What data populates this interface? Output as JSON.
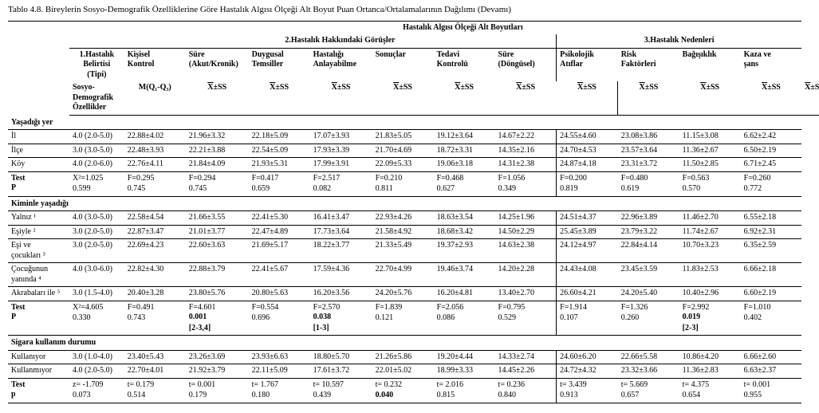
{
  "title": "Tablo 4.8. Bireylerin Sosyo-Demografik Özelliklerine Göre Hastalık Algısı Ölçeği Alt Boyut Puan Ortanca/Ortalamalarının Dağılımı (Devamı)",
  "rowhead": {
    "label": "Sosyo-\nDemografik\nÖzellikler",
    "c1_top": "1.Hastalık\nBelirtisi\n(Tipi)",
    "c1_sub": "M(Q₁-Q₃)",
    "group_main": "Hastalık Algısı Ölçeği Alt Boyutları",
    "group2": "2.Hastalık Hakkındaki Görüşler",
    "group3": "3.Hastalık Nedenleri",
    "cols2": [
      "Kişisel\nKontrol",
      "Süre\n(Akut/Kronik)",
      "Duygusal\nTemsiller",
      "Hastalığı\nAnlayabilme",
      "Sonuçlar",
      "Tedavi\nKontrolü",
      "Süre\n(Döngüsel)"
    ],
    "cols3": [
      "Psikolojik\nAtıflar",
      "Risk\nFaktörleri",
      "Bağışıklık",
      "Kaza ve\nşans"
    ],
    "xss": "X̄±SS"
  },
  "sections": [
    {
      "title": "Yaşadığı yer",
      "rows": [
        {
          "n": "İl",
          "c": [
            "4.0 (2.0-5.0)",
            "22.88±4.02",
            "21.96±3.32",
            "22.18±5.09",
            "17.07±3.93",
            "21.83±5.05",
            "19.12±3.64",
            "14.67±2.22",
            "24.55±4.60",
            "23.08±3.86",
            "11.15±3.08",
            "6.62±2.42"
          ]
        },
        {
          "n": "İlçe",
          "c": [
            "3.0 (3.0-5.0)",
            "22.48±3.93",
            "22.21±3.88",
            "22.54±5.09",
            "17.93±3.39",
            "21.70±4.69",
            "18.72±3.31",
            "14.35±2.16",
            "24.70±4.53",
            "23.57±3.64",
            "11.36±2.67",
            "6.50±2.19"
          ]
        },
        {
          "n": "Köy",
          "c": [
            "4.0 (2.0-6.0)",
            "22.76±4.11",
            "21.84±4.09",
            "21.93±5.31",
            "17.99±3.91",
            "22.09±5.33",
            "19.06±3.18",
            "14.31±2.38",
            "24.87±4.18",
            "23.31±3.72",
            "11.50±2.85",
            "6.71±2.45"
          ]
        }
      ],
      "test": {
        "n": "Test\nP",
        "c": [
          [
            "X²=1.025",
            "0.599"
          ],
          [
            "F=0.295",
            "0.745"
          ],
          [
            "F=0.294",
            "0.745"
          ],
          [
            "F=0.417",
            "0.659"
          ],
          [
            "F=2.517",
            "0.082"
          ],
          [
            "F=0.210",
            "0.811"
          ],
          [
            "F=0.468",
            "0.627"
          ],
          [
            "F=1.056",
            "0.349"
          ],
          [
            "F=0.200",
            "0.819"
          ],
          [
            "F=0.480",
            "0.619"
          ],
          [
            "F=0.563",
            "0.570"
          ],
          [
            "F=0.260",
            "0.772"
          ]
        ]
      }
    },
    {
      "title": "Kiminle yaşadığı",
      "rows": [
        {
          "n": "Yalnız ¹",
          "c": [
            "4.0 (3.0-5.0)",
            "22.58±4.54",
            "21.66±3.55",
            "22.41±5.30",
            "16.41±3.47",
            "22.93±4.26",
            "18.63±3.54",
            "14.25±1.96",
            "24.51±4.37",
            "22.96±3.89",
            "11.46±2.70",
            "6.55±2.18"
          ]
        },
        {
          "n": "Eşiyle ²",
          "c": [
            "3.0 (2.0-5.0)",
            "22.87±3.47",
            "21.01±3.77",
            "22.47±4.89",
            "17.73±3.64",
            "21.58±4.92",
            "18.68±3.42",
            "14.50±2.29",
            "25.45±3.89",
            "23.79±3.22",
            "11.74±2.67",
            "6.92±2.31"
          ]
        },
        {
          "n": "Eşi ve\nçocukları ³",
          "c": [
            "3.0 (2.0-5.0)",
            "22.69±4.23",
            "22.60±3.63",
            "21.69±5.17",
            "18.22±3.77",
            "21.33±5.49",
            "19.37±2.93",
            "14.63±2.38",
            "24.12±4.97",
            "22.84±4.14",
            "10.70±3.23",
            "6.35±2.59"
          ]
        },
        {
          "n": "Çocuğunun\nyanında ⁴",
          "c": [
            "4.0 (3.0-6.0)",
            "22.82±4.30",
            "22.88±3.79",
            "22.41±5.67",
            "17.59±4.36",
            "22.70±4.99",
            "19.46±3.74",
            "14.20±2.28",
            "24.43±4.08",
            "23.45±3.59",
            "11.83±2.53",
            "6.66±2.18"
          ]
        },
        {
          "n": "Akrabaları ile ⁵",
          "c": [
            "3.0 (1.5-4.0)",
            "20.40±3.28",
            "23.80±5.76",
            "20.80±5.63",
            "16.20±3.56",
            "24.20±5.76",
            "16.20±4.81",
            "13.40±2.70",
            "26.60±4.21",
            "24.20±5.40",
            "10.40±2.96",
            "6.60±2.19"
          ]
        }
      ],
      "test": {
        "n": "Test\nP",
        "c": [
          [
            "X²=4.605",
            "0.330"
          ],
          [
            "F=0.491",
            "0.743"
          ],
          [
            "F=4.601",
            "0.001",
            "[2-3,4]"
          ],
          [
            "F=0.554",
            "0.696"
          ],
          [
            "F=2.570",
            "0.038",
            "[1-3]"
          ],
          [
            "F=1.839",
            "0.121"
          ],
          [
            "F=2.056",
            "0.086"
          ],
          [
            "F=0.795",
            "0.529"
          ],
          [
            "F=1.914",
            "0.107"
          ],
          [
            "F=1.326",
            "0.260"
          ],
          [
            "F=2.992",
            "0.019",
            "[2-3]"
          ],
          [
            "F=1.010",
            "0.402"
          ]
        ],
        "bold_idx": [
          2,
          4,
          10
        ]
      }
    },
    {
      "title": "Sigara kullanım durumu",
      "rows": [
        {
          "n": "Kullanıyor",
          "c": [
            "3.0 (1.0-4.0)",
            "23.40±5.43",
            "23.26±3.69",
            "23.93±6.63",
            "18.80±5.70",
            "21.26±5.86",
            "19.20±4.44",
            "14.33±2.74",
            "24.60±6.20",
            "22.66±5.58",
            "10.86±4.20",
            "6.66±2.60"
          ]
        },
        {
          "n": "Kullanmıyor",
          "c": [
            "4.0 (2.0-5.0)",
            "22.70±4.01",
            "21.92±3.79",
            "22.11±5.09",
            "17.61±3.72",
            "22.01±5.02",
            "18.99±3.33",
            "14.45±2.26",
            "24.72±4.32",
            "23.32±3.66",
            "11.36±2.83",
            "6.63±2.37"
          ]
        }
      ],
      "test": {
        "n": "Test\np",
        "c": [
          [
            "z= -1.709",
            "0.073"
          ],
          [
            "t= 0.179",
            "0.514"
          ],
          [
            "t= 0.001",
            "0.179"
          ],
          [
            "t= 1.767",
            "0.180"
          ],
          [
            "t= 10.597",
            "0.439"
          ],
          [
            "t= 0.232",
            "0.040"
          ],
          [
            "t= 2.016",
            "0.815"
          ],
          [
            "t= 0.236",
            "0.840"
          ],
          [
            "t= 3.439",
            "0.913"
          ],
          [
            "t= 5.669",
            "0.657"
          ],
          [
            "t= 4.375",
            "0.654"
          ],
          [
            "t= 0.001",
            "0.955"
          ]
        ],
        "bold_idx": [
          5
        ]
      }
    }
  ],
  "style": {
    "widthPx": 1027,
    "heightPx": 503,
    "font": "Times New Roman",
    "baseFontSize": 10,
    "titleFontSize": 11,
    "colors": {
      "text": "#000000",
      "background": "#ffffff",
      "rule": "#000000"
    },
    "cols": {
      "rowhead": 78,
      "c1": 70,
      "dataEach": 80,
      "nData": 11
    },
    "rules": [
      "above header",
      "below header stub row",
      "below each test row"
    ]
  }
}
